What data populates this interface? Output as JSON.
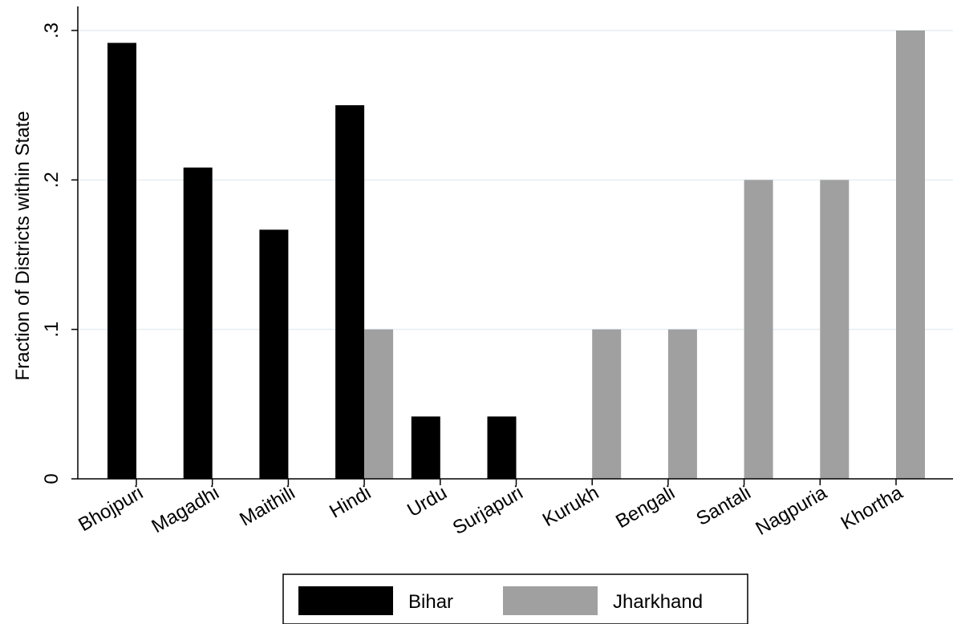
{
  "chart_data": {
    "type": "bar",
    "categories": [
      "Bhojpuri",
      "Magadhi",
      "Maithili",
      "Hindi",
      "Urdu",
      "Surjapuri",
      "Kurukh",
      "Bengali",
      "Santali",
      "Nagpuria",
      "Khortha"
    ],
    "series": [
      {
        "name": "Bihar",
        "color": "#000000",
        "values": [
          0.2917,
          0.2083,
          0.1667,
          0.25,
          0.0417,
          0.0417,
          null,
          null,
          null,
          null,
          null
        ]
      },
      {
        "name": "Jharkhand",
        "color": "#a0a0a0",
        "values": [
          null,
          null,
          null,
          0.1,
          null,
          null,
          0.1,
          0.1,
          0.2,
          0.2,
          0.3
        ]
      }
    ],
    "title": "",
    "xlabel": "",
    "ylabel": "Fraction of Districts within State",
    "ylim": [
      0,
      0.3
    ],
    "yticks": [
      0,
      0.1,
      0.2,
      0.3
    ],
    "ytick_labels": [
      "0",
      ".1",
      ".2",
      ".3"
    ],
    "grid": true,
    "legend_position": "bottom"
  }
}
